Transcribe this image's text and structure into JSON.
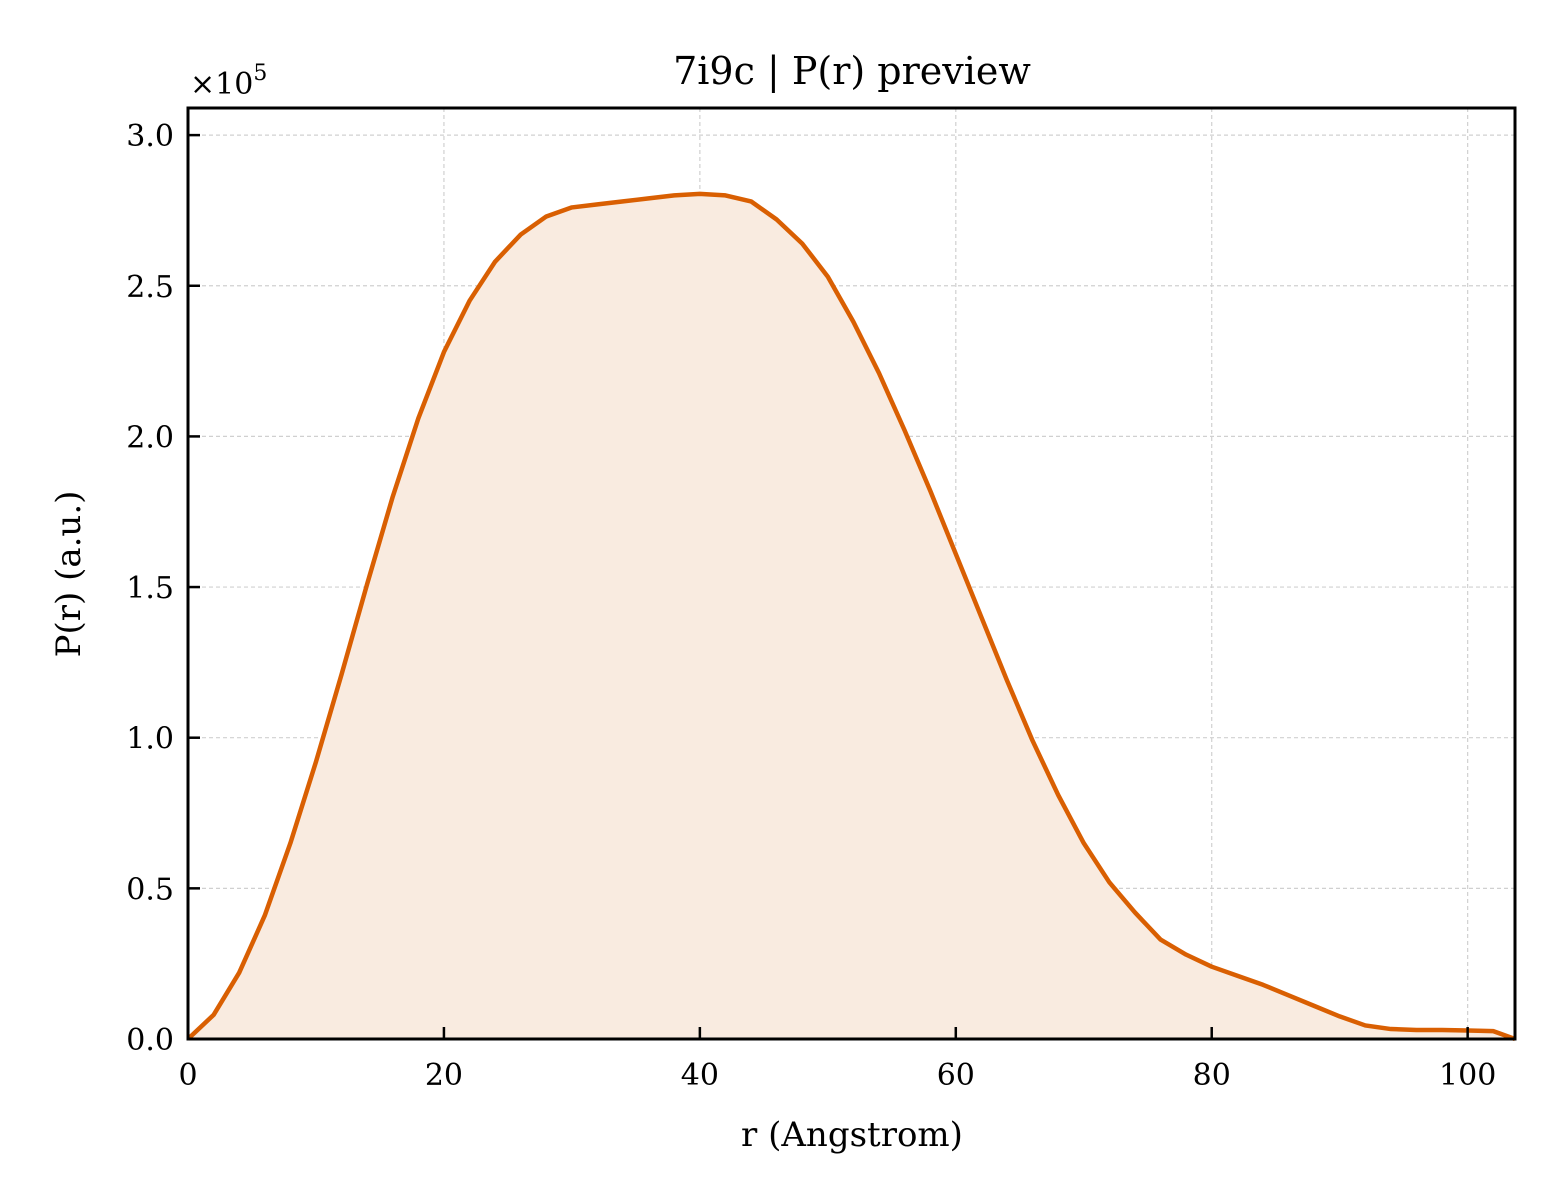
{
  "chart_data": {
    "type": "area",
    "title": "7i9c | P(r) preview",
    "xlabel": "r (Angstrom)",
    "ylabel": "P(r) (a.u.)",
    "y_multiplier": "×10",
    "y_multiplier_exp": "5",
    "xlim": [
      0,
      103.7
    ],
    "ylim": [
      0,
      3.09
    ],
    "x_ticks": [
      "0",
      "20",
      "40",
      "60",
      "80",
      "100"
    ],
    "y_ticks": [
      "0.0",
      "0.5",
      "1.0",
      "1.5",
      "2.0",
      "2.5",
      "3.0"
    ],
    "grid": true,
    "line_color": "#d95f02",
    "fill_color": "#f9ebe0",
    "series": [
      {
        "x": [
          0,
          2,
          4,
          6,
          8,
          10,
          12,
          14,
          16,
          18,
          20,
          22,
          24,
          26,
          28,
          30,
          32,
          34,
          36,
          38,
          40,
          42,
          44,
          46,
          48,
          50,
          52,
          54,
          56,
          58,
          60,
          62,
          64,
          66,
          68,
          70,
          72,
          74,
          76,
          78,
          80,
          82,
          84,
          86,
          88,
          90,
          92,
          94,
          96,
          98,
          100,
          102,
          103.7
        ],
        "y": [
          0.0,
          0.08,
          0.22,
          0.41,
          0.65,
          0.92,
          1.21,
          1.51,
          1.8,
          2.06,
          2.28,
          2.45,
          2.58,
          2.67,
          2.73,
          2.76,
          2.77,
          2.78,
          2.79,
          2.8,
          2.805,
          2.8,
          2.78,
          2.72,
          2.64,
          2.53,
          2.38,
          2.21,
          2.02,
          1.82,
          1.61,
          1.4,
          1.19,
          0.99,
          0.81,
          0.65,
          0.52,
          0.42,
          0.33,
          0.28,
          0.24,
          0.21,
          0.18,
          0.145,
          0.11,
          0.075,
          0.045,
          0.033,
          0.03,
          0.03,
          0.028,
          0.026,
          0.0
        ]
      }
    ]
  }
}
